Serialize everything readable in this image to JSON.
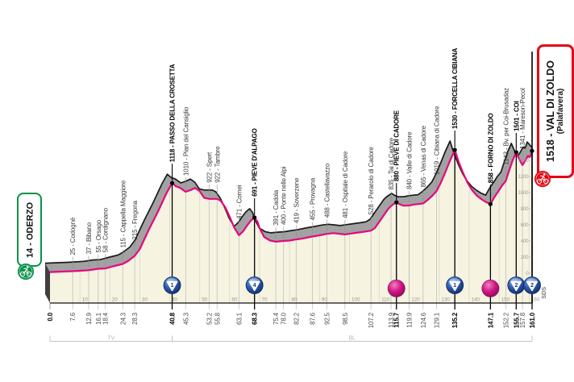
{
  "stage": {
    "start": {
      "label": "14 - ODERZO",
      "color": "#0a9148"
    },
    "finish": {
      "label": "1518 - VAL DI ZOLDO",
      "sublabel": "(Palafavera)",
      "color": "#e30613"
    }
  },
  "colors": {
    "profile_line": "#e6077e",
    "area_fill": "#f6f3e1",
    "band_gray": "#a2a2a2",
    "band_edge": "#1a1a1a",
    "left_face": "#3f3f3f",
    "gpm_blue_dark": "#16337a",
    "gpm_blue": "#2a54a8",
    "sprint_pink": "#c3167f",
    "axis_gray": "#9a9a9a",
    "bracket_gray": "#c4c4c4"
  },
  "icons": {
    "start_cyclist": "cyclist-icon",
    "finish_cyclist": "cyclist-icon",
    "gpm": "mountain-triangle-icon",
    "sprint": "sprint-s-icon"
  },
  "chart_data": {
    "type": "area",
    "title": "",
    "xlabel": "km",
    "ylabel": "m",
    "x_range": [
      0,
      161
    ],
    "x_axis_ticks": [
      10,
      20,
      30,
      40,
      50,
      60,
      70,
      80,
      90,
      100,
      110,
      120,
      130,
      140,
      150,
      160
    ],
    "y_axis_ticks": [
      0,
      200,
      400,
      600,
      800,
      1000,
      1200,
      1400
    ],
    "grid": true,
    "sds_label": "SDS",
    "province_brackets": [
      {
        "label": "TV",
        "from_km": 0,
        "to_km": 40.8
      },
      {
        "label": "BL",
        "from_km": 40.8,
        "to_km": 161
      }
    ],
    "waypoints": [
      {
        "km": 0.0,
        "dist": "0.0",
        "elev": 14,
        "label": "",
        "bold": true,
        "marker": null
      },
      {
        "km": 7.6,
        "dist": "7.6",
        "elev": 25,
        "label": "25 - Codognè",
        "bold": false,
        "marker": null
      },
      {
        "km": 12.9,
        "dist": "12.9",
        "elev": 37,
        "label": "37 - Bibano",
        "bold": false,
        "marker": null
      },
      {
        "km": 16.1,
        "dist": "16.1",
        "elev": 55,
        "label": "55 - Orsago",
        "bold": false,
        "marker": null
      },
      {
        "km": 18.4,
        "dist": "18.4",
        "elev": 58,
        "label": "58 - Cordignano",
        "bold": false,
        "marker": null
      },
      {
        "km": 24.3,
        "dist": "24.3",
        "elev": 115,
        "label": "115 - Cappella Maggiore",
        "bold": false,
        "marker": null
      },
      {
        "km": 28.3,
        "dist": "28.3",
        "elev": 215,
        "label": "215 - Fregona",
        "bold": false,
        "marker": null
      },
      {
        "km": 40.8,
        "dist": "40.8",
        "elev": 1118,
        "label": "1118 - PASSO DELLA CROSETTA",
        "bold": true,
        "marker": "gpm-1"
      },
      {
        "km": 45.3,
        "dist": "45.3",
        "elev": 1010,
        "label": "1010 - Pian del Cansiglio",
        "bold": false,
        "marker": null
      },
      {
        "km": 53.2,
        "dist": "53.2",
        "elev": 922,
        "label": "922 - Spert",
        "bold": false,
        "marker": null
      },
      {
        "km": 55.8,
        "dist": "55.8",
        "elev": 922,
        "label": "922 - Tambre",
        "bold": false,
        "marker": null
      },
      {
        "km": 63.1,
        "dist": "63.1",
        "elev": 471,
        "label": "471 - Cornei",
        "bold": false,
        "marker": null
      },
      {
        "km": 68.3,
        "dist": "68.3",
        "elev": 691,
        "label": "691 - PIEVE D'ALPAGO",
        "bold": true,
        "marker": "gpm-4"
      },
      {
        "km": 75.4,
        "dist": "75.4",
        "elev": 391,
        "label": "391 - Cadola",
        "bold": false,
        "marker": null
      },
      {
        "km": 78.0,
        "dist": "78.0",
        "elev": 400,
        "label": "400 - Ponte nelle Alpi",
        "bold": false,
        "marker": null
      },
      {
        "km": 82.2,
        "dist": "82.2",
        "elev": 419,
        "label": "419 - Soverzene",
        "bold": false,
        "marker": null
      },
      {
        "km": 87.6,
        "dist": "87.6",
        "elev": 455,
        "label": "455 - Provagna",
        "bold": false,
        "marker": null
      },
      {
        "km": 92.5,
        "dist": "92.5",
        "elev": 488,
        "label": "488 - Castellavazzo",
        "bold": false,
        "marker": null
      },
      {
        "km": 98.5,
        "dist": "98.5",
        "elev": 481,
        "label": "481 - Ospitale di Cadore",
        "bold": false,
        "marker": null
      },
      {
        "km": 107.2,
        "dist": "107.2",
        "elev": 528,
        "label": "528 - Perarolo di Cadore",
        "bold": false,
        "marker": null
      },
      {
        "km": 113.9,
        "dist": "113.9",
        "elev": 835,
        "label": "835 - Tai di Cadore",
        "bold": false,
        "marker": null
      },
      {
        "km": 115.7,
        "dist": "115.7",
        "elev": 880,
        "label": "880 - PIEVE DI CADORE",
        "bold": true,
        "marker": "sprint"
      },
      {
        "km": 119.9,
        "dist": "119.9",
        "elev": 840,
        "label": "840 - Valle di Cadore",
        "bold": false,
        "marker": null
      },
      {
        "km": 124.6,
        "dist": "124.6",
        "elev": 865,
        "label": "865 - Venas di Cadore",
        "bold": false,
        "marker": null
      },
      {
        "km": 129.1,
        "dist": "129.1",
        "elev": 1019,
        "label": "1019 - Cibiana di Cadore",
        "bold": false,
        "marker": null
      },
      {
        "km": 135.2,
        "dist": "135.2",
        "elev": 1530,
        "label": "1530 - FORCELLA CIBIANA",
        "bold": true,
        "marker": "gpm-1"
      },
      {
        "km": 147.1,
        "dist": "147.1",
        "elev": 858,
        "label": "858 - FORNO DI ZOLDO",
        "bold": true,
        "marker": "sprint"
      },
      {
        "km": 152.2,
        "dist": "152.2",
        "elev": 1143,
        "label": "1143 - Bv. per Coi-Brusadaz",
        "bold": false,
        "marker": null
      },
      {
        "km": 155.7,
        "dist": "155.7",
        "elev": 1501,
        "label": "1501 - COI",
        "bold": true,
        "marker": "gpm-2"
      },
      {
        "km": 157.8,
        "dist": "157.8",
        "elev": 1341,
        "label": "1341 - Mareson-Pecol",
        "bold": false,
        "marker": null
      },
      {
        "km": 161.0,
        "dist": "161.0",
        "elev": 1518,
        "label": "",
        "bold": true,
        "marker": "gpm-2"
      }
    ],
    "profile": [
      [
        0,
        14
      ],
      [
        4,
        20
      ],
      [
        7.6,
        25
      ],
      [
        10,
        30
      ],
      [
        12.9,
        37
      ],
      [
        16.1,
        55
      ],
      [
        18.4,
        58
      ],
      [
        21,
        85
      ],
      [
        24.3,
        115
      ],
      [
        26,
        150
      ],
      [
        28.3,
        215
      ],
      [
        30,
        300
      ],
      [
        33,
        540
      ],
      [
        36,
        760
      ],
      [
        39,
        1000
      ],
      [
        40.8,
        1118
      ],
      [
        42,
        1080
      ],
      [
        43.5,
        1058
      ],
      [
        45.3,
        1010
      ],
      [
        47,
        1032
      ],
      [
        48.5,
        1058
      ],
      [
        50,
        1018
      ],
      [
        51.5,
        935
      ],
      [
        53.2,
        922
      ],
      [
        55.8,
        922
      ],
      [
        57,
        900
      ],
      [
        58.5,
        820
      ],
      [
        60,
        700
      ],
      [
        61.5,
        570
      ],
      [
        63.1,
        471
      ],
      [
        64.5,
        520
      ],
      [
        66,
        600
      ],
      [
        67,
        650
      ],
      [
        68.3,
        691
      ],
      [
        69.3,
        640
      ],
      [
        70,
        560
      ],
      [
        71.5,
        450
      ],
      [
        73.5,
        405
      ],
      [
        75.4,
        391
      ],
      [
        78,
        400
      ],
      [
        80,
        405
      ],
      [
        82.2,
        419
      ],
      [
        84,
        428
      ],
      [
        87.6,
        455
      ],
      [
        90,
        470
      ],
      [
        92.5,
        488
      ],
      [
        94.5,
        497
      ],
      [
        96.5,
        490
      ],
      [
        98.5,
        481
      ],
      [
        100.5,
        492
      ],
      [
        103,
        505
      ],
      [
        105,
        515
      ],
      [
        107.2,
        528
      ],
      [
        108.5,
        560
      ],
      [
        110,
        640
      ],
      [
        111.5,
        720
      ],
      [
        113,
        800
      ],
      [
        113.9,
        835
      ],
      [
        115.7,
        880
      ],
      [
        116.8,
        855
      ],
      [
        118,
        838
      ],
      [
        119.9,
        840
      ],
      [
        121.5,
        852
      ],
      [
        123,
        858
      ],
      [
        124.6,
        865
      ],
      [
        126,
        905
      ],
      [
        127.5,
        955
      ],
      [
        129.1,
        1019
      ],
      [
        130.5,
        1120
      ],
      [
        132,
        1250
      ],
      [
        133.5,
        1390
      ],
      [
        135.2,
        1530
      ],
      [
        136.5,
        1380
      ],
      [
        138,
        1240
      ],
      [
        139.5,
        1120
      ],
      [
        141,
        1030
      ],
      [
        142.5,
        965
      ],
      [
        144,
        920
      ],
      [
        145.5,
        885
      ],
      [
        147.1,
        858
      ],
      [
        148.5,
        950
      ],
      [
        150,
        1030
      ],
      [
        151,
        1090
      ],
      [
        152.2,
        1143
      ],
      [
        153.3,
        1270
      ],
      [
        154.5,
        1400
      ],
      [
        155.7,
        1501
      ],
      [
        156.6,
        1420
      ],
      [
        157.8,
        1341
      ],
      [
        158.8,
        1400
      ],
      [
        159.6,
        1455
      ],
      [
        160.2,
        1440
      ],
      [
        160.5,
        1460
      ],
      [
        161,
        1518
      ]
    ]
  }
}
